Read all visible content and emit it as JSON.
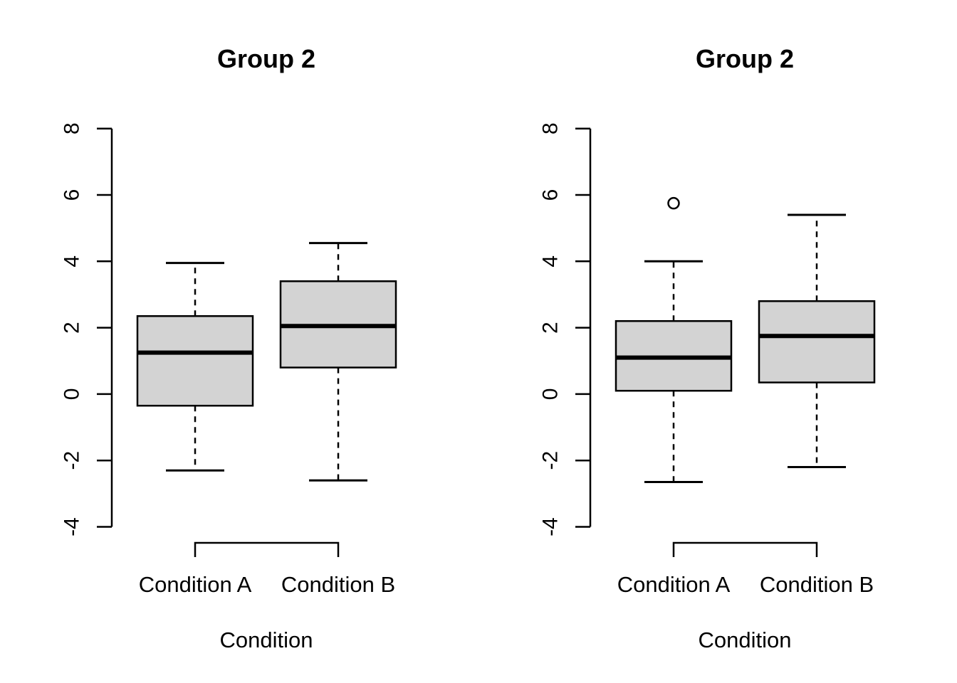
{
  "figure": {
    "background": "#ffffff",
    "box_fill": "#d3d3d3",
    "line_color": "#000000"
  },
  "chart_data": [
    {
      "type": "boxplot",
      "title": "Group 2",
      "xlabel": "Condition",
      "ylabel": "",
      "categories": [
        "Condition A",
        "Condition B"
      ],
      "ylim": [
        -4,
        8
      ],
      "yticks": [
        8,
        6,
        4,
        2,
        0,
        -2,
        -4
      ],
      "ytick_labels": [
        "8",
        "6",
        "4",
        "2",
        "0",
        "-2",
        "-4"
      ],
      "grid": false,
      "legend": false,
      "series": [
        {
          "name": "Condition A",
          "whisker_low": -2.3,
          "q1": -0.35,
          "median": 1.25,
          "q3": 2.35,
          "whisker_high": 3.95,
          "outliers": []
        },
        {
          "name": "Condition B",
          "whisker_low": -2.6,
          "q1": 0.8,
          "median": 2.05,
          "q3": 3.4,
          "whisker_high": 4.55,
          "outliers": []
        }
      ]
    },
    {
      "type": "boxplot",
      "title": "Group 2",
      "xlabel": "Condition",
      "ylabel": "",
      "categories": [
        "Condition A",
        "Condition B"
      ],
      "ylim": [
        -4,
        8
      ],
      "yticks": [
        8,
        6,
        4,
        2,
        0,
        -2,
        -4
      ],
      "ytick_labels": [
        "8",
        "6",
        "4",
        "2",
        "0",
        "-2",
        "-4"
      ],
      "grid": false,
      "legend": false,
      "series": [
        {
          "name": "Condition A",
          "whisker_low": -2.65,
          "q1": 0.1,
          "median": 1.1,
          "q3": 2.2,
          "whisker_high": 4.0,
          "outliers": [
            5.75
          ]
        },
        {
          "name": "Condition B",
          "whisker_low": -2.2,
          "q1": 0.35,
          "median": 1.75,
          "q3": 2.8,
          "whisker_high": 5.4,
          "outliers": []
        }
      ]
    }
  ]
}
